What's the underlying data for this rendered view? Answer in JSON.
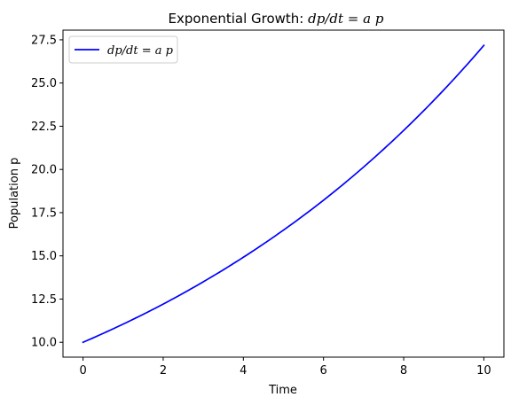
{
  "chart_data": {
    "type": "line",
    "title": {
      "prefix": "Exponential Growth: ",
      "math": {
        "lhs": "dp/dt",
        "eq": " = ",
        "rhs": "a p"
      }
    },
    "xlabel": "Time",
    "ylabel": "Population p",
    "xlim": [
      -0.5,
      10.5
    ],
    "ylim": [
      9.14,
      28.06
    ],
    "xticks": [
      0,
      2,
      4,
      6,
      8,
      10
    ],
    "xtick_labels": [
      "0",
      "2",
      "4",
      "6",
      "8",
      "10"
    ],
    "yticks": [
      10.0,
      12.5,
      15.0,
      17.5,
      20.0,
      22.5,
      25.0,
      27.5
    ],
    "ytick_labels": [
      "10.0",
      "12.5",
      "15.0",
      "17.5",
      "20.0",
      "22.5",
      "25.0",
      "27.5"
    ],
    "grid": false,
    "legend": {
      "placement": "upper-left",
      "entries": [
        {
          "lhs": "dp/dt",
          "eq": " = ",
          "rhs": "a p"
        }
      ]
    },
    "series": [
      {
        "label": "dp/dt = a p",
        "color": "#0000ff",
        "x": [
          0,
          1,
          2,
          3,
          4,
          5,
          6,
          7,
          8,
          9,
          10
        ],
        "y": [
          10.0,
          11.05,
          12.21,
          13.5,
          14.92,
          16.49,
          18.22,
          20.14,
          22.26,
          24.6,
          27.18
        ]
      }
    ]
  }
}
